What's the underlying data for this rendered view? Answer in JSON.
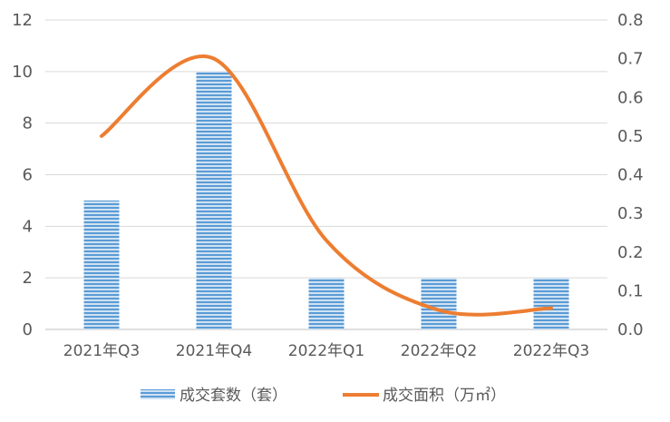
{
  "chart_data": {
    "type": "bar+line",
    "categories": [
      "2021年Q3",
      "2021年Q4",
      "2022年Q1",
      "2022年Q2",
      "2022年Q3"
    ],
    "series": [
      {
        "name": "成交套数（套）",
        "type": "bar",
        "axis": "left",
        "values": [
          5,
          10,
          2,
          2,
          2
        ],
        "color": "#5B9BD5"
      },
      {
        "name": "成交面积（万㎡）",
        "type": "line",
        "axis": "right",
        "smooth": true,
        "values": [
          0.5,
          0.7,
          0.23,
          0.05,
          0.055
        ],
        "color": "#ED7D31"
      }
    ],
    "y_left": {
      "lim": [
        0,
        12
      ],
      "ticks": [
        "0",
        "2",
        "4",
        "6",
        "8",
        "10",
        "12"
      ]
    },
    "y_right": {
      "lim": [
        0,
        0.8
      ],
      "ticks": [
        "0.0",
        "0.1",
        "0.2",
        "0.3",
        "0.4",
        "0.5",
        "0.6",
        "0.7",
        "0.8"
      ]
    },
    "grid": true,
    "legend": "bottom"
  }
}
